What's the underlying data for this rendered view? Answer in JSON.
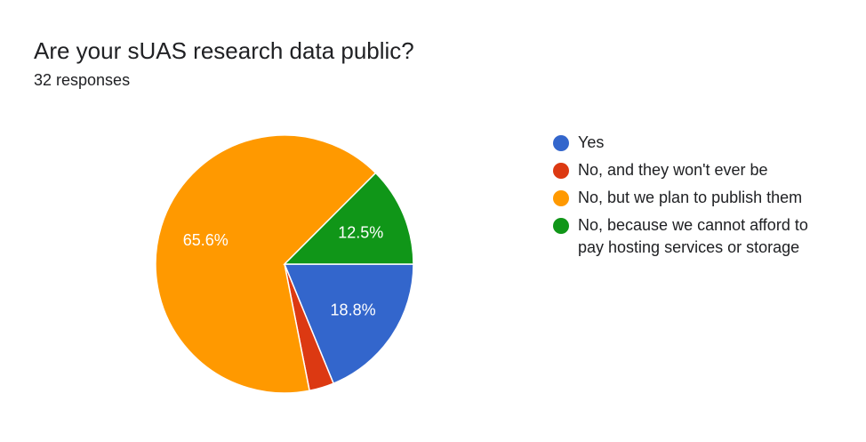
{
  "header": {
    "title": "Are your sUAS research data public?",
    "responses": "32 responses"
  },
  "chart_data": {
    "type": "pie",
    "title": "Are your sUAS research data public?",
    "subtitle": "32 responses",
    "start_angle_deg": 0,
    "direction": "counterclockwise-from-3-oclock",
    "slices": [
      {
        "label": "Yes",
        "value": 18.8,
        "display": "18.8%",
        "color": "#3366cc"
      },
      {
        "label": "No, and they won't ever be",
        "value": 3.1,
        "display": "",
        "color": "#dc3912"
      },
      {
        "label": "No, but we plan to publish them",
        "value": 65.6,
        "display": "65.6%",
        "color": "#ff9900"
      },
      {
        "label": "No, because we cannot afford to pay hosting services or storage",
        "value": 12.5,
        "display": "12.5%",
        "color": "#109618"
      }
    ],
    "legend_position": "right"
  }
}
